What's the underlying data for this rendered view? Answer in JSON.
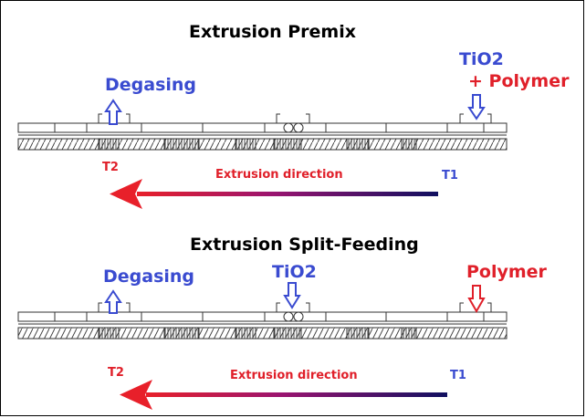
{
  "colors": {
    "blue": "#3a4bd0",
    "red": "#e0202a",
    "navy": "#101060",
    "black": "#000000"
  },
  "panels": [
    {
      "title": "Extrusion Premix",
      "degasing": "Degasing",
      "feed_1": "TiO2",
      "feed_2": "+ Polymer",
      "t2": "T2",
      "t1": "T1",
      "direction": "Extrusion direction"
    },
    {
      "title": "Extrusion Split-Feeding",
      "degasing": "Degasing",
      "feed_1": "TiO2",
      "feed_2": "Polymer",
      "t2": "T2",
      "t1": "T1",
      "direction": "Extrusion direction"
    }
  ]
}
